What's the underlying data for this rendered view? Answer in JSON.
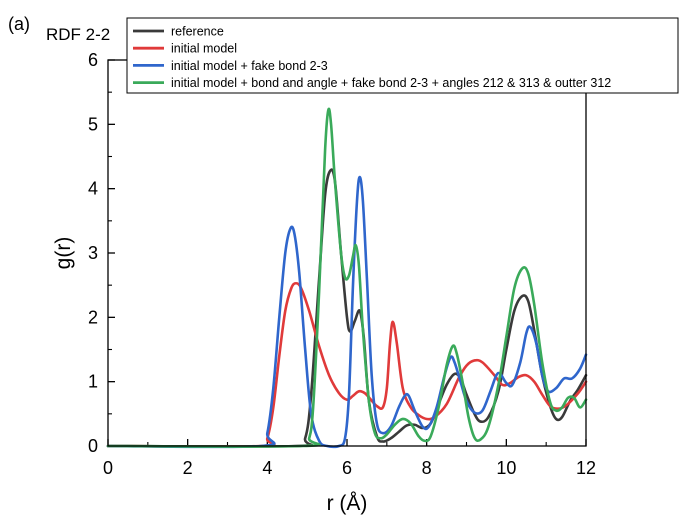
{
  "panel_label": "(a)",
  "chart_data": {
    "type": "line",
    "title": "RDF 2-2",
    "xlabel": "r (Å)",
    "ylabel": "g(r)",
    "xlim": [
      0,
      12
    ],
    "ylim": [
      0,
      6
    ],
    "xticks": [
      0,
      2,
      4,
      6,
      8,
      10,
      12
    ],
    "yticks": [
      0,
      1,
      2,
      3,
      4,
      5,
      6
    ],
    "grid": false,
    "legend_position": "top-right",
    "series": [
      {
        "name": "reference",
        "color": "#3a3a3a",
        "points": [
          [
            0,
            0
          ],
          [
            4.7,
            0
          ],
          [
            4.95,
            0.12
          ],
          [
            5.1,
            0.8
          ],
          [
            5.3,
            2.6
          ],
          [
            5.45,
            3.9
          ],
          [
            5.58,
            4.28
          ],
          [
            5.7,
            4.1
          ],
          [
            5.85,
            3.0
          ],
          [
            6.0,
            2.0
          ],
          [
            6.08,
            1.78
          ],
          [
            6.2,
            1.95
          ],
          [
            6.32,
            2.1
          ],
          [
            6.42,
            1.7
          ],
          [
            6.55,
            0.7
          ],
          [
            6.75,
            0.15
          ],
          [
            6.9,
            0.07
          ],
          [
            7.1,
            0.12
          ],
          [
            7.3,
            0.22
          ],
          [
            7.5,
            0.32
          ],
          [
            7.7,
            0.33
          ],
          [
            7.9,
            0.28
          ],
          [
            8.1,
            0.35
          ],
          [
            8.3,
            0.65
          ],
          [
            8.5,
            0.95
          ],
          [
            8.7,
            1.12
          ],
          [
            8.85,
            1.05
          ],
          [
            9.0,
            0.8
          ],
          [
            9.2,
            0.5
          ],
          [
            9.35,
            0.38
          ],
          [
            9.55,
            0.45
          ],
          [
            9.8,
            0.85
          ],
          [
            10.0,
            1.5
          ],
          [
            10.2,
            2.1
          ],
          [
            10.4,
            2.33
          ],
          [
            10.55,
            2.25
          ],
          [
            10.7,
            1.8
          ],
          [
            10.9,
            1.1
          ],
          [
            11.1,
            0.62
          ],
          [
            11.25,
            0.42
          ],
          [
            11.4,
            0.45
          ],
          [
            11.6,
            0.7
          ],
          [
            11.8,
            0.88
          ],
          [
            12.0,
            1.1
          ]
        ]
      },
      {
        "name": "initial model",
        "color": "#e03a3a",
        "points": [
          [
            0,
            0
          ],
          [
            3.85,
            0
          ],
          [
            4.0,
            0.12
          ],
          [
            4.15,
            0.6
          ],
          [
            4.3,
            1.4
          ],
          [
            4.45,
            2.1
          ],
          [
            4.6,
            2.45
          ],
          [
            4.72,
            2.53
          ],
          [
            4.85,
            2.45
          ],
          [
            5.05,
            2.1
          ],
          [
            5.3,
            1.55
          ],
          [
            5.55,
            1.1
          ],
          [
            5.8,
            0.82
          ],
          [
            6.0,
            0.72
          ],
          [
            6.15,
            0.78
          ],
          [
            6.3,
            0.85
          ],
          [
            6.45,
            0.82
          ],
          [
            6.6,
            0.72
          ],
          [
            6.75,
            0.62
          ],
          [
            6.9,
            0.6
          ],
          [
            7.0,
            0.9
          ],
          [
            7.08,
            1.6
          ],
          [
            7.15,
            1.93
          ],
          [
            7.25,
            1.6
          ],
          [
            7.4,
            0.9
          ],
          [
            7.6,
            0.6
          ],
          [
            7.8,
            0.48
          ],
          [
            8.0,
            0.42
          ],
          [
            8.2,
            0.45
          ],
          [
            8.5,
            0.65
          ],
          [
            8.8,
            1.05
          ],
          [
            9.0,
            1.25
          ],
          [
            9.2,
            1.33
          ],
          [
            9.4,
            1.3
          ],
          [
            9.7,
            1.1
          ],
          [
            9.9,
            0.95
          ],
          [
            10.1,
            0.98
          ],
          [
            10.3,
            1.07
          ],
          [
            10.5,
            1.1
          ],
          [
            10.7,
            1.0
          ],
          [
            10.9,
            0.8
          ],
          [
            11.1,
            0.62
          ],
          [
            11.3,
            0.58
          ],
          [
            11.5,
            0.63
          ],
          [
            11.8,
            0.82
          ],
          [
            12.0,
            1.0
          ]
        ]
      },
      {
        "name": "initial model + fake bond 2-3",
        "color": "#2f66cc",
        "points": [
          [
            0,
            0
          ],
          [
            3.85,
            0
          ],
          [
            4.0,
            0.2
          ],
          [
            4.15,
            0.9
          ],
          [
            4.3,
            2.0
          ],
          [
            4.45,
            3.0
          ],
          [
            4.58,
            3.38
          ],
          [
            4.68,
            3.3
          ],
          [
            4.8,
            2.7
          ],
          [
            4.95,
            1.5
          ],
          [
            5.1,
            0.5
          ],
          [
            5.3,
            0.08
          ],
          [
            5.5,
            0
          ],
          [
            5.8,
            0
          ],
          [
            5.95,
            0.12
          ],
          [
            6.05,
            0.8
          ],
          [
            6.15,
            2.5
          ],
          [
            6.25,
            3.8
          ],
          [
            6.32,
            4.18
          ],
          [
            6.4,
            3.8
          ],
          [
            6.5,
            2.6
          ],
          [
            6.62,
            1.1
          ],
          [
            6.75,
            0.35
          ],
          [
            6.9,
            0.2
          ],
          [
            7.1,
            0.3
          ],
          [
            7.3,
            0.6
          ],
          [
            7.45,
            0.78
          ],
          [
            7.55,
            0.78
          ],
          [
            7.7,
            0.55
          ],
          [
            7.9,
            0.3
          ],
          [
            8.05,
            0.3
          ],
          [
            8.25,
            0.6
          ],
          [
            8.45,
            1.1
          ],
          [
            8.6,
            1.38
          ],
          [
            8.7,
            1.3
          ],
          [
            8.85,
            1.0
          ],
          [
            9.0,
            0.7
          ],
          [
            9.2,
            0.52
          ],
          [
            9.4,
            0.55
          ],
          [
            9.6,
            0.85
          ],
          [
            9.75,
            1.1
          ],
          [
            9.85,
            1.12
          ],
          [
            10.0,
            0.98
          ],
          [
            10.15,
            0.95
          ],
          [
            10.35,
            1.3
          ],
          [
            10.5,
            1.75
          ],
          [
            10.6,
            1.85
          ],
          [
            10.75,
            1.6
          ],
          [
            10.9,
            1.1
          ],
          [
            11.05,
            0.85
          ],
          [
            11.25,
            0.9
          ],
          [
            11.45,
            1.05
          ],
          [
            11.65,
            1.05
          ],
          [
            11.85,
            1.2
          ],
          [
            12.0,
            1.42
          ]
        ]
      },
      {
        "name": "initial model + bond and angle + fake bond 2-3 + angles 212 & 313 & outter 312",
        "color": "#3aaa5a",
        "points": [
          [
            0,
            0
          ],
          [
            4.9,
            0
          ],
          [
            5.05,
            0.12
          ],
          [
            5.15,
            0.6
          ],
          [
            5.3,
            2.4
          ],
          [
            5.45,
            4.6
          ],
          [
            5.53,
            5.22
          ],
          [
            5.6,
            5.0
          ],
          [
            5.7,
            4.1
          ],
          [
            5.85,
            3.0
          ],
          [
            5.95,
            2.62
          ],
          [
            6.05,
            2.65
          ],
          [
            6.15,
            2.95
          ],
          [
            6.22,
            3.12
          ],
          [
            6.3,
            2.8
          ],
          [
            6.4,
            1.8
          ],
          [
            6.55,
            0.7
          ],
          [
            6.7,
            0.2
          ],
          [
            6.85,
            0.12
          ],
          [
            7.0,
            0.18
          ],
          [
            7.2,
            0.33
          ],
          [
            7.4,
            0.42
          ],
          [
            7.6,
            0.35
          ],
          [
            7.8,
            0.15
          ],
          [
            7.95,
            0.08
          ],
          [
            8.1,
            0.15
          ],
          [
            8.3,
            0.6
          ],
          [
            8.5,
            1.25
          ],
          [
            8.65,
            1.55
          ],
          [
            8.75,
            1.45
          ],
          [
            8.9,
            1.0
          ],
          [
            9.05,
            0.45
          ],
          [
            9.2,
            0.13
          ],
          [
            9.35,
            0.1
          ],
          [
            9.55,
            0.3
          ],
          [
            9.8,
            0.95
          ],
          [
            10.0,
            1.7
          ],
          [
            10.2,
            2.45
          ],
          [
            10.4,
            2.76
          ],
          [
            10.55,
            2.68
          ],
          [
            10.7,
            2.2
          ],
          [
            10.9,
            1.3
          ],
          [
            11.1,
            0.68
          ],
          [
            11.25,
            0.55
          ],
          [
            11.4,
            0.6
          ],
          [
            11.55,
            0.75
          ],
          [
            11.7,
            0.75
          ],
          [
            11.85,
            0.6
          ],
          [
            12.0,
            0.72
          ]
        ]
      }
    ]
  }
}
